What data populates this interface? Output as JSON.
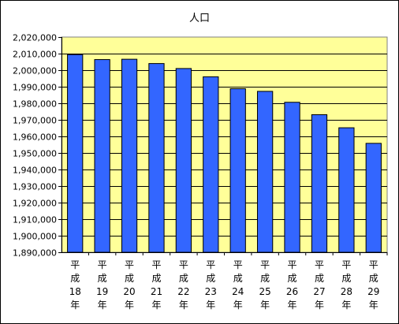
{
  "chart_data": {
    "type": "bar",
    "title": "人口",
    "categories": [
      [
        "平",
        "成",
        "18",
        "年"
      ],
      [
        "平",
        "成",
        "19",
        "年"
      ],
      [
        "平",
        "成",
        "20",
        "年"
      ],
      [
        "平",
        "成",
        "21",
        "年"
      ],
      [
        "平",
        "成",
        "22",
        "年"
      ],
      [
        "平",
        "成",
        "23",
        "年"
      ],
      [
        "平",
        "成",
        "24",
        "年"
      ],
      [
        "平",
        "成",
        "25",
        "年"
      ],
      [
        "平",
        "成",
        "26",
        "年"
      ],
      [
        "平",
        "成",
        "27",
        "年"
      ],
      [
        "平",
        "成",
        "28",
        "年"
      ],
      [
        "平",
        "成",
        "29",
        "年"
      ]
    ],
    "values": [
      2009400,
      2006400,
      2006600,
      2004000,
      2001000,
      1996000,
      1988800,
      1987200,
      1980600,
      1973100,
      1965200,
      1955800
    ],
    "ylim": [
      1890000,
      2020000
    ],
    "ytick_step": 10000,
    "ytick_labels": [
      "1,890,000",
      "1,900,000",
      "1,910,000",
      "1,920,000",
      "1,930,000",
      "1,940,000",
      "1,950,000",
      "1,960,000",
      "1,970,000",
      "1,980,000",
      "1,990,000",
      "2,000,000",
      "2,010,000",
      "2,020,000"
    ],
    "grid": true,
    "colors": {
      "plot_bg": "#FFFF99",
      "bar": "#3366FF",
      "bar_edge": "#000000",
      "grid": "#000000"
    }
  }
}
